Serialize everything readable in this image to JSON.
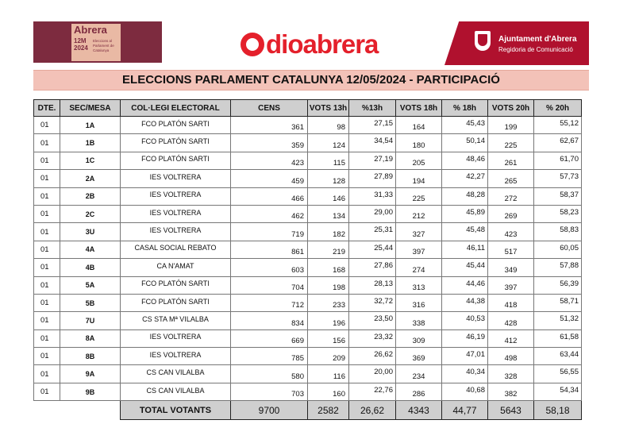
{
  "header": {
    "left_logo": {
      "brand": "Abrera",
      "date_line1": "12M",
      "date_line2": "2024",
      "subtitle": "Eleccions al Parlament de Catalunya"
    },
    "center_logo": {
      "brand": "dioabrera",
      "color": "#e4202b"
    },
    "right_logo": {
      "name": "Ajuntament d'Abrera",
      "department": "Regidoria de Comunicació",
      "color": "#b0112e"
    }
  },
  "title": "ELECCIONS PARLAMENT CATALUNYA 12/05/2024 - PARTICIPACIÓ",
  "table": {
    "columns": [
      "DTE.",
      "SEC/MESA",
      "COL·LEGI ELECTORAL",
      "CENS",
      "VOTS 13h",
      "%13h",
      "VOTS 18h",
      "% 18h",
      "VOTS 20h",
      "% 20h"
    ],
    "rows": [
      {
        "dte": "01",
        "sec": "1A",
        "col": "FCO PLATÓN SARTI",
        "cens": "361",
        "v13": "98",
        "p13": "27,15",
        "v18": "164",
        "p18": "45,43",
        "v20": "199",
        "p20": "55,12"
      },
      {
        "dte": "01",
        "sec": "1B",
        "col": "FCO PLATÓN SARTI",
        "cens": "359",
        "v13": "124",
        "p13": "34,54",
        "v18": "180",
        "p18": "50,14",
        "v20": "225",
        "p20": "62,67"
      },
      {
        "dte": "01",
        "sec": "1C",
        "col": "FCO PLATÓN SARTI",
        "cens": "423",
        "v13": "115",
        "p13": "27,19",
        "v18": "205",
        "p18": "48,46",
        "v20": "261",
        "p20": "61,70"
      },
      {
        "dte": "01",
        "sec": "2A",
        "col": "IES VOLTRERA",
        "cens": "459",
        "v13": "128",
        "p13": "27,89",
        "v18": "194",
        "p18": "42,27",
        "v20": "265",
        "p20": "57,73"
      },
      {
        "dte": "01",
        "sec": "2B",
        "col": "IES VOLTRERA",
        "cens": "466",
        "v13": "146",
        "p13": "31,33",
        "v18": "225",
        "p18": "48,28",
        "v20": "272",
        "p20": "58,37"
      },
      {
        "dte": "01",
        "sec": "2C",
        "col": "IES VOLTRERA",
        "cens": "462",
        "v13": "134",
        "p13": "29,00",
        "v18": "212",
        "p18": "45,89",
        "v20": "269",
        "p20": "58,23"
      },
      {
        "dte": "01",
        "sec": "3U",
        "col": "IES VOLTRERA",
        "cens": "719",
        "v13": "182",
        "p13": "25,31",
        "v18": "327",
        "p18": "45,48",
        "v20": "423",
        "p20": "58,83"
      },
      {
        "dte": "01",
        "sec": "4A",
        "col": "CASAL SOCIAL REBATO",
        "cens": "861",
        "v13": "219",
        "p13": "25,44",
        "v18": "397",
        "p18": "46,11",
        "v20": "517",
        "p20": "60,05"
      },
      {
        "dte": "01",
        "sec": "4B",
        "col": "CA N'AMAT",
        "cens": "603",
        "v13": "168",
        "p13": "27,86",
        "v18": "274",
        "p18": "45,44",
        "v20": "349",
        "p20": "57,88"
      },
      {
        "dte": "01",
        "sec": "5A",
        "col": "FCO PLATÓN SARTI",
        "cens": "704",
        "v13": "198",
        "p13": "28,13",
        "v18": "313",
        "p18": "44,46",
        "v20": "397",
        "p20": "56,39"
      },
      {
        "dte": "01",
        "sec": "5B",
        "col": "FCO PLATÓN SARTI",
        "cens": "712",
        "v13": "233",
        "p13": "32,72",
        "v18": "316",
        "p18": "44,38",
        "v20": "418",
        "p20": "58,71"
      },
      {
        "dte": "01",
        "sec": "7U",
        "col": "CS STA Mª VILALBA",
        "cens": "834",
        "v13": "196",
        "p13": "23,50",
        "v18": "338",
        "p18": "40,53",
        "v20": "428",
        "p20": "51,32"
      },
      {
        "dte": "01",
        "sec": "8A",
        "col": "IES VOLTRERA",
        "cens": "669",
        "v13": "156",
        "p13": "23,32",
        "v18": "309",
        "p18": "46,19",
        "v20": "412",
        "p20": "61,58"
      },
      {
        "dte": "01",
        "sec": "8B",
        "col": "IES VOLTRERA",
        "cens": "785",
        "v13": "209",
        "p13": "26,62",
        "v18": "369",
        "p18": "47,01",
        "v20": "498",
        "p20": "63,44"
      },
      {
        "dte": "01",
        "sec": "9A",
        "col": "CS CAN VILALBA",
        "cens": "580",
        "v13": "116",
        "p13": "20,00",
        "v18": "234",
        "p18": "40,34",
        "v20": "328",
        "p20": "56,55"
      },
      {
        "dte": "01",
        "sec": "9B",
        "col": "CS CAN VILALBA",
        "cens": "703",
        "v13": "160",
        "p13": "22,76",
        "v18": "286",
        "p18": "40,68",
        "v20": "382",
        "p20": "54,34"
      }
    ],
    "total": {
      "label": "TOTAL VOTANTS",
      "cens": "9700",
      "v13": "2582",
      "p13": "26,62",
      "v18": "4343",
      "p18": "44,77",
      "v20": "5643",
      "p20": "58,18"
    }
  }
}
